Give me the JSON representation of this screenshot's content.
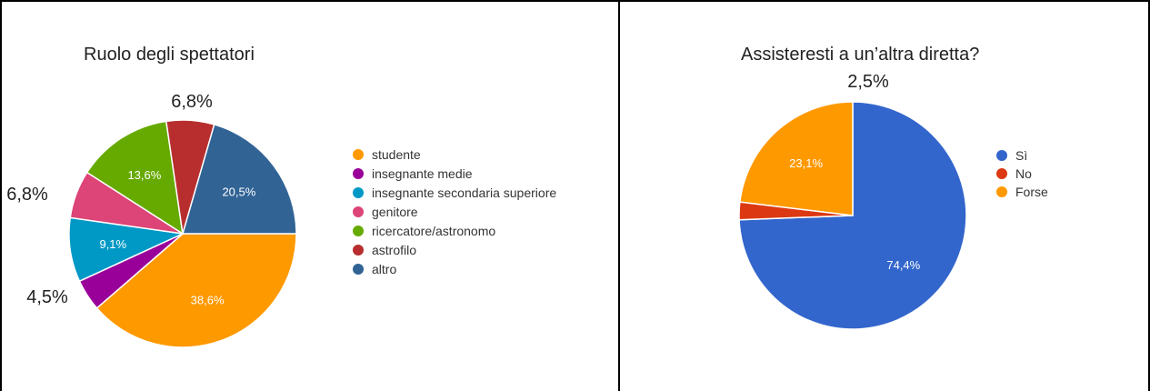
{
  "chart_data": [
    {
      "type": "pie",
      "title": "Ruolo degli spettatori",
      "start_angle_deg": 90,
      "direction": "clockwise",
      "legend_position": "right",
      "labels": [
        "studente",
        "insegnante medie",
        "insegnante secondaria superiore",
        "genitore",
        "ricercatore/astronomo",
        "astrofilo",
        "altro"
      ],
      "values": [
        38.6,
        4.5,
        9.1,
        6.8,
        13.6,
        6.8,
        20.5
      ],
      "value_labels": [
        "38,6%",
        "4,5%",
        "9,1%",
        "6,8%",
        "13,6%",
        "6,8%",
        "20,5%"
      ],
      "colors": [
        "#ff9900",
        "#990099",
        "#0099c6",
        "#dd4477",
        "#66aa00",
        "#b82e2e",
        "#316395"
      ],
      "label_placement": [
        "inside",
        "outside",
        "inside",
        "outside",
        "inside",
        "outside",
        "inside"
      ]
    },
    {
      "type": "pie",
      "title": "Assisteresti a un’altra diretta?",
      "start_angle_deg": 0,
      "direction": "clockwise",
      "legend_position": "right",
      "labels": [
        "Sì",
        "No",
        "Forse"
      ],
      "values": [
        74.4,
        2.5,
        23.1
      ],
      "value_labels": [
        "74,4%",
        "2,5%",
        "23,1%"
      ],
      "colors": [
        "#3366cc",
        "#dc3912",
        "#ff9900"
      ],
      "label_placement": [
        "inside",
        "outside",
        "inside"
      ]
    }
  ]
}
